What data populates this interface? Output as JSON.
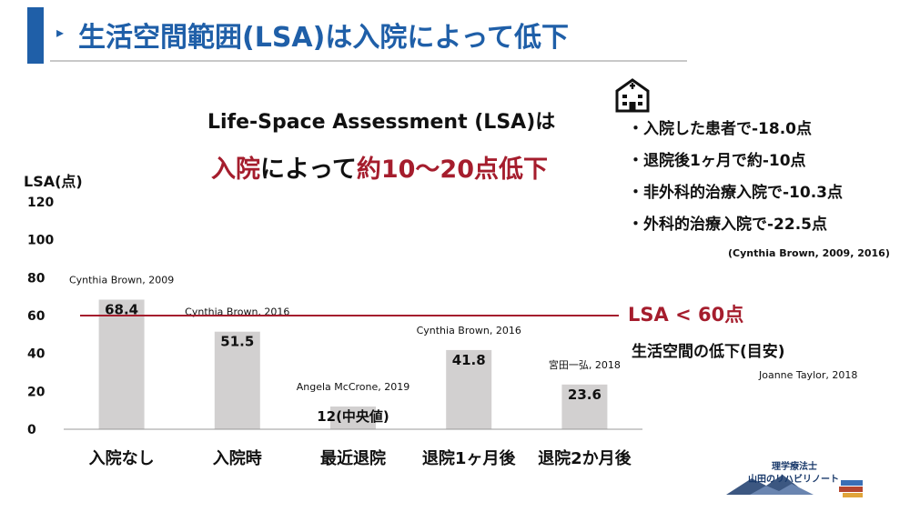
{
  "slide": {
    "title_arrow": "▸",
    "title": "生活空間範囲(LSA)は入院によって低下",
    "headline_line1": "Life-Space Assessment (LSA)は",
    "headline_line2_parts": [
      "入院",
      "によって",
      "約10〜20点低下"
    ]
  },
  "stats": {
    "icon": "hospital-icon",
    "items": [
      "・入院した患者で-18.0点",
      "・退院後1ヶ月で約-10点",
      "・非外科的治療入院で-10.3点",
      "・外科的治療入院で-22.5点"
    ],
    "citation": "(Cynthia Brown, 2009, 2016)"
  },
  "reference": {
    "label": "LSA < 60点",
    "sublabel": "生活空間の低下(目安)",
    "citation": "Joanne Taylor, 2018"
  },
  "logo": {
    "line1": "理学療法士",
    "line2": "山田のリハビリノート"
  },
  "colors": {
    "accent": "#1f5fa8",
    "emphasis": "#a51d2d",
    "bar": "#d2d0d0"
  },
  "chart_data": {
    "type": "bar",
    "ylabel": "LSA(点)",
    "ylim": [
      0,
      120
    ],
    "yticks": [
      0,
      20,
      40,
      60,
      80,
      100,
      120
    ],
    "categories": [
      "入院なし",
      "入院時",
      "最近退院",
      "退院1ヶ月後",
      "退院2か月後"
    ],
    "values": [
      68.4,
      51.5,
      12,
      41.8,
      23.6
    ],
    "value_labels": [
      "68.4",
      "51.5",
      "12(中央値)",
      "41.8",
      "23.6"
    ],
    "sources": [
      "Cynthia Brown, 2009",
      "Cynthia Brown, 2016",
      "Angela McCrone, 2019",
      "Cynthia Brown, 2016",
      "宮田一弘, 2018"
    ],
    "reference_line": 60,
    "grid": false
  }
}
